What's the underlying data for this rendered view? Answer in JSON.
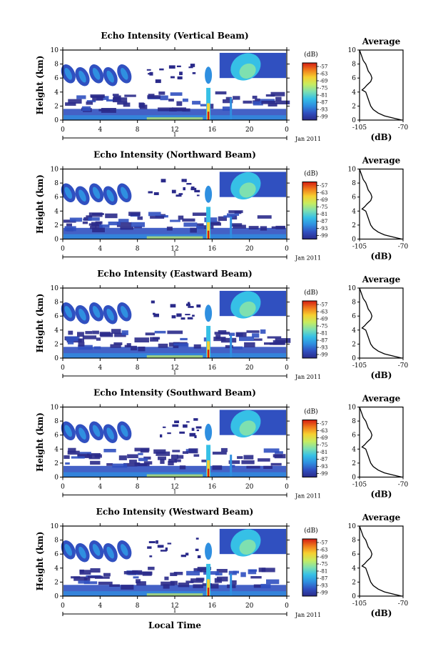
{
  "chart_data": {
    "type": "heatmap",
    "shared": {
      "ylabel": "Height (km)",
      "xlabel_bottom": "Local Time",
      "date_label": "Jan 2011",
      "day_marker": "1",
      "x_ticks": [
        "0",
        "4",
        "8",
        "12",
        "16",
        "20",
        "0"
      ],
      "y_ticks": [
        "0",
        "2",
        "4",
        "6",
        "8",
        "10"
      ],
      "colorbar_unit": "(dB)",
      "colorbar_ticks": [
        "-57",
        "-63",
        "-69",
        "-75",
        "-81",
        "-87",
        "-93",
        "-99"
      ],
      "colorbar_range": [
        -102,
        -54
      ],
      "avg_title": "Average",
      "avg_xlabel": "(dB)",
      "avg_x_ticks": [
        "-105",
        "-70"
      ],
      "avg_xlim": [
        -105,
        -70
      ],
      "avg_ylim": [
        0,
        10
      ],
      "avg_profile": {
        "height_km": [
          0,
          0.3,
          0.6,
          1.0,
          1.5,
          2.0,
          2.5,
          3.0,
          3.5,
          4.0,
          4.3,
          4.6,
          5.0,
          5.5,
          6.0,
          6.5,
          7.0,
          7.5,
          8.0,
          8.5,
          9.0,
          9.5,
          10.0
        ],
        "echo_db": [
          -71,
          -78,
          -85,
          -90,
          -94,
          -96,
          -97,
          -98,
          -99,
          -100,
          -103,
          -101,
          -99,
          -96,
          -95,
          -96,
          -98,
          -99,
          -100,
          -102,
          -103,
          -104,
          -105
        ]
      },
      "colors": {
        "scale": [
          "#2a2a8a",
          "#3050c0",
          "#2f8fe0",
          "#36c0e6",
          "#7ee0b0",
          "#c7ec60",
          "#f6d030",
          "#f07c1c",
          "#d41c12"
        ]
      }
    },
    "panels": [
      {
        "title": "Echo Intensity (Vertical Beam)"
      },
      {
        "title": "Echo Intensity (Northward Beam)"
      },
      {
        "title": "Echo Intensity (Eastward Beam)"
      },
      {
        "title": "Echo Intensity (Southward Beam)"
      },
      {
        "title": "Echo Intensity (Westward Beam)"
      }
    ]
  }
}
